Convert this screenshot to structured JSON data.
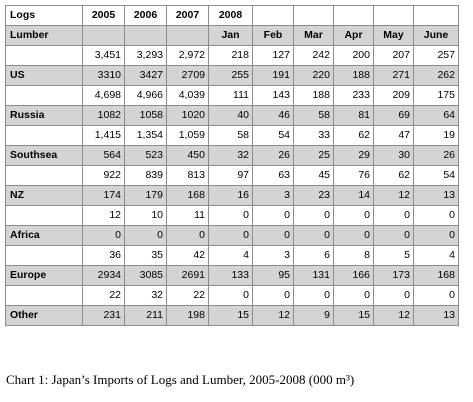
{
  "chart_data": {
    "type": "table",
    "title": "Chart 1: Japan’s Imports of Logs and Lumber, 2005-2008 (000 m³)",
    "row_labels": {
      "logs": "Logs",
      "lumber": "Lumber"
    },
    "year_labels": [
      "2005",
      "2006",
      "2007",
      "2008"
    ],
    "columns": [
      "2005",
      "2006",
      "2007",
      "Jan",
      "Feb",
      "Mar",
      "Apr",
      "May",
      "June"
    ],
    "regions": [
      {
        "name": "US",
        "logs": [
          "3,451",
          "3,293",
          "2,972",
          "218",
          "127",
          "242",
          "200",
          "207",
          "257"
        ],
        "lumber": [
          "3310",
          "3427",
          "2709",
          "255",
          "191",
          "220",
          "188",
          "271",
          "262"
        ]
      },
      {
        "name": "Russia",
        "logs": [
          "4,698",
          "4,966",
          "4,039",
          "111",
          "143",
          "188",
          "233",
          "209",
          "175"
        ],
        "lumber": [
          "1082",
          "1058",
          "1020",
          "40",
          "46",
          "58",
          "81",
          "69",
          "64"
        ]
      },
      {
        "name": "Southsea",
        "logs": [
          "1,415",
          "1,354",
          "1,059",
          "58",
          "54",
          "33",
          "62",
          "47",
          "19"
        ],
        "lumber": [
          "564",
          "523",
          "450",
          "32",
          "26",
          "25",
          "29",
          "30",
          "26"
        ]
      },
      {
        "name": "NZ",
        "logs": [
          "922",
          "839",
          "813",
          "97",
          "63",
          "45",
          "76",
          "62",
          "54"
        ],
        "lumber": [
          "174",
          "179",
          "168",
          "16",
          "3",
          "23",
          "14",
          "12",
          "13"
        ]
      },
      {
        "name": "Africa",
        "logs": [
          "12",
          "10",
          "11",
          "0",
          "0",
          "0",
          "0",
          "0",
          "0"
        ],
        "lumber": [
          "0",
          "0",
          "0",
          "0",
          "0",
          "0",
          "0",
          "0",
          "0"
        ]
      },
      {
        "name": "Europe",
        "logs": [
          "36",
          "35",
          "42",
          "4",
          "3",
          "6",
          "8",
          "5",
          "4"
        ],
        "lumber": [
          "2934",
          "3085",
          "2691",
          "133",
          "95",
          "131",
          "166",
          "173",
          "168"
        ]
      },
      {
        "name": "Other",
        "logs": [
          "22",
          "32",
          "22",
          "0",
          "0",
          "0",
          "0",
          "0",
          "0"
        ],
        "lumber": [
          "231",
          "211",
          "198",
          "15",
          "12",
          "9",
          "15",
          "12",
          "13"
        ]
      }
    ]
  }
}
